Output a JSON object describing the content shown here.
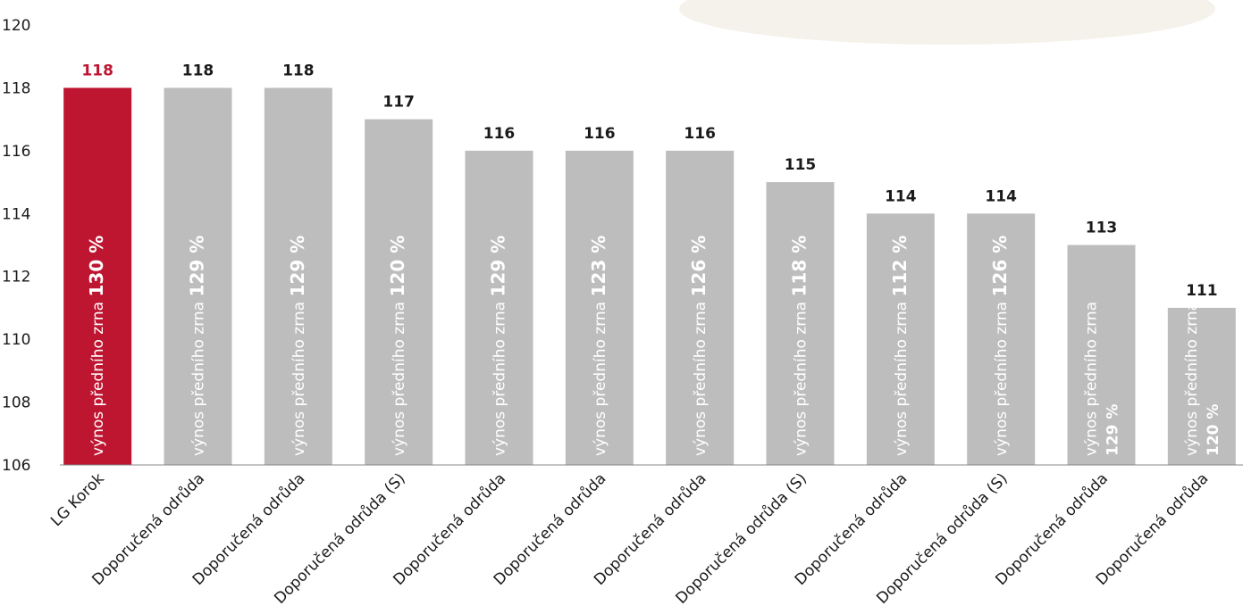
{
  "chart_data": {
    "type": "bar",
    "categories": [
      "LG Korok",
      "Doporučená odrůda",
      "Doporučená odrůda",
      "Doporučená odrůda (S)",
      "Doporučená odrůda",
      "Doporučená odrůda",
      "Doporučená odrůda",
      "Doporučená odrůda (S)",
      "Doporučená odrůda",
      "Doporučená odrůda (S)",
      "Doporučená odrůda",
      "Doporučená odrůda"
    ],
    "values": [
      118,
      118,
      118,
      117,
      116,
      116,
      116,
      115,
      114,
      114,
      113,
      111
    ],
    "colors": [
      "#be1531",
      "#bdbdbd",
      "#bdbdbd",
      "#bdbdbd",
      "#bdbdbd",
      "#bdbdbd",
      "#bdbdbd",
      "#bdbdbd",
      "#bdbdbd",
      "#bdbdbd",
      "#bdbdbd",
      "#bdbdbd"
    ],
    "value_label_colors": [
      "#be1531",
      "#1a1a1a",
      "#1a1a1a",
      "#1a1a1a",
      "#1a1a1a",
      "#1a1a1a",
      "#1a1a1a",
      "#1a1a1a",
      "#1a1a1a",
      "#1a1a1a",
      "#1a1a1a",
      "#1a1a1a"
    ],
    "inner_label": "výnos předního zrna",
    "inner_value_labels": [
      "130 %",
      "129 %",
      "129 %",
      "120 %",
      "129 %",
      "123 %",
      "126 %",
      "118 %",
      "112 %",
      "126 %",
      "129 %",
      "120 %"
    ],
    "ylim": [
      106,
      120
    ],
    "yticks": [
      106,
      108,
      110,
      112,
      114,
      116,
      118,
      120
    ],
    "grid": false
  }
}
